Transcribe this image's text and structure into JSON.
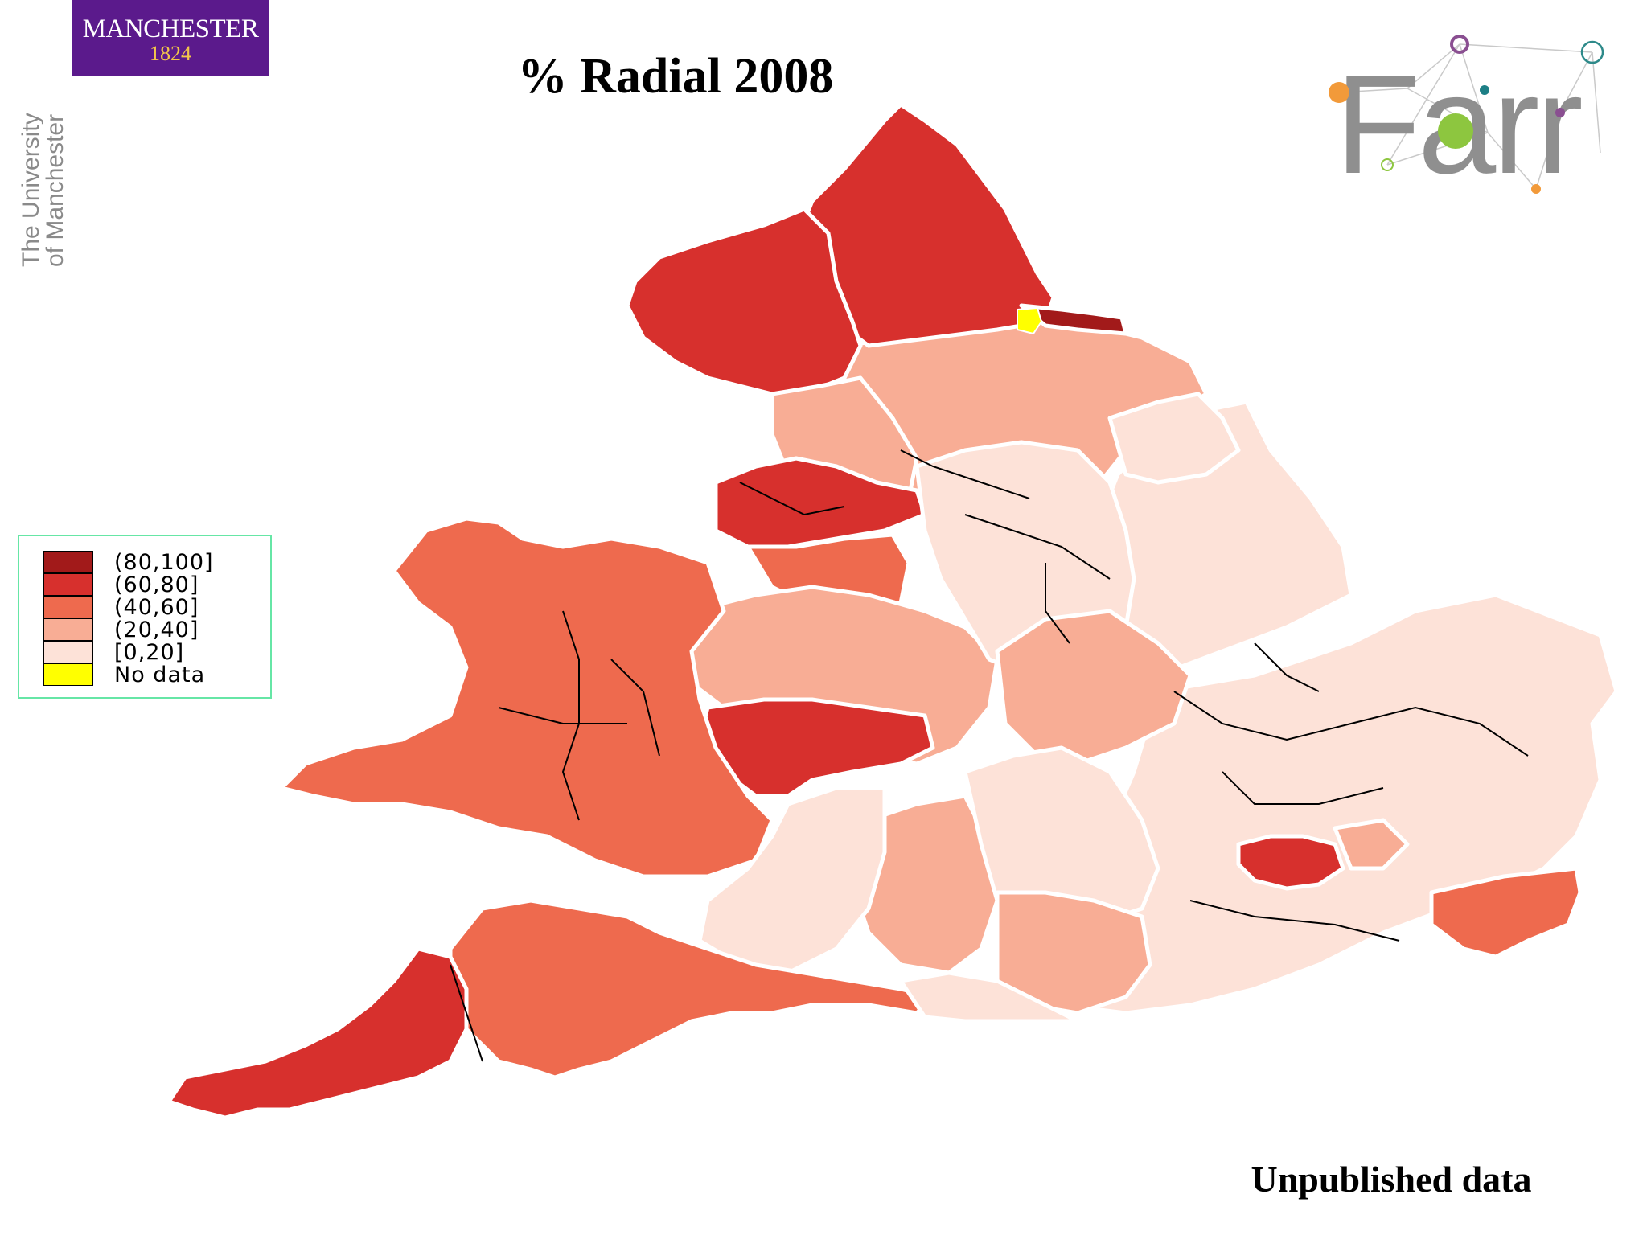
{
  "branding": {
    "manchester_name": "MANCHESTER",
    "manchester_year": "1824",
    "university_line1": "The University",
    "university_line2": "of Manchester",
    "farr_logo_text": "Farr"
  },
  "title": "% Radial 2008",
  "legend": {
    "items": [
      {
        "label": "(80,100]",
        "color": "#a21a1a"
      },
      {
        "label": "(60,80]",
        "color": "#d7302d"
      },
      {
        "label": "(40,60]",
        "color": "#ee6a4e"
      },
      {
        "label": "(20,40]",
        "color": "#f8ad95"
      },
      {
        "label": "[0,20]",
        "color": "#fde2d8"
      },
      {
        "label": "No data",
        "color": "#ffff00"
      }
    ]
  },
  "footnote": "Unpublished data"
}
